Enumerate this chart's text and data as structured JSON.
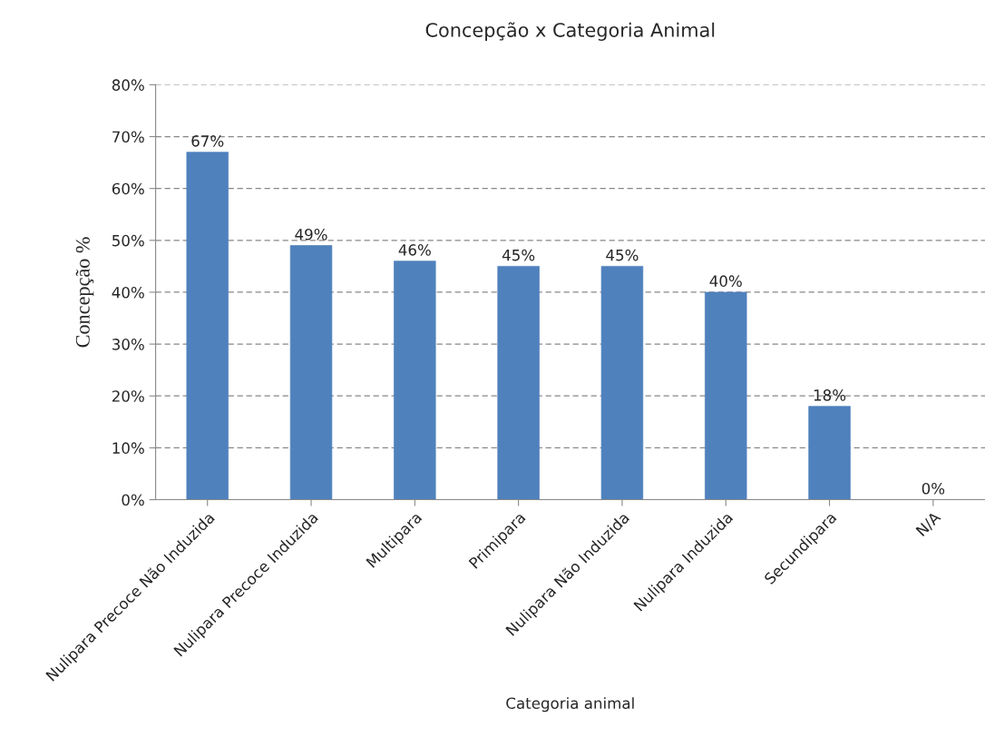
{
  "chart_data": {
    "type": "bar",
    "title": "Concepção x Categoria Animal",
    "xlabel": "Categoria animal",
    "ylabel": "Concepção %",
    "categories": [
      "Nulipara Precoce Não Induzida",
      "Nulipara Precoce Induzida",
      "Multipara",
      "Primipara",
      "Nulipara Não Induzida",
      "Nulipara Induzida",
      "Secundipara",
      "N/A"
    ],
    "values": [
      67,
      49,
      46,
      45,
      45,
      40,
      18,
      0
    ],
    "value_labels": [
      "67%",
      "49%",
      "46%",
      "45%",
      "45%",
      "40%",
      "18%",
      "0%"
    ],
    "color": "#4f81bd",
    "ylim": [
      0,
      80
    ],
    "yticks": [
      {
        "value": 0,
        "label": "0%"
      },
      {
        "value": 10,
        "label": "10%"
      },
      {
        "value": 20,
        "label": "20%"
      },
      {
        "value": 30,
        "label": "30%"
      },
      {
        "value": 40,
        "label": "40%"
      },
      {
        "value": 50,
        "label": "50%"
      },
      {
        "value": 60,
        "label": "60%"
      },
      {
        "value": 70,
        "label": "70%"
      },
      {
        "value": 80,
        "label": "80%"
      }
    ],
    "grid": "y",
    "legend": false
  }
}
